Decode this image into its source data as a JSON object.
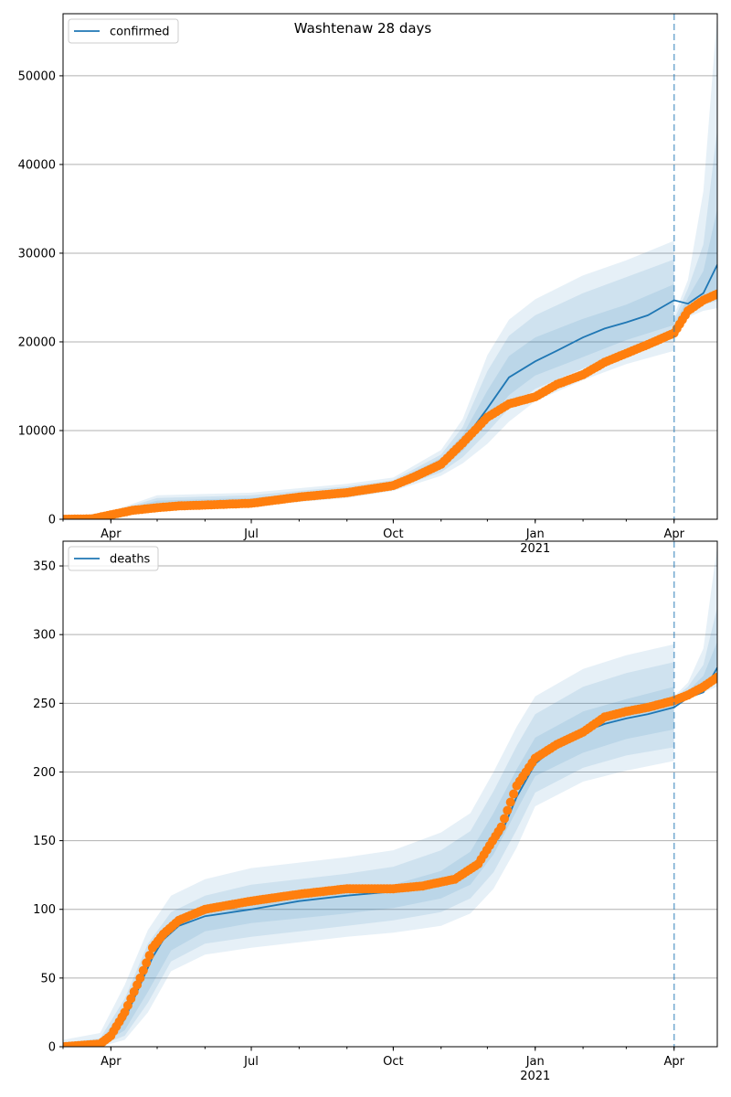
{
  "figure": {
    "title": "Washtenaw 28 days"
  },
  "colors": {
    "model": "#1f77b4",
    "observed": "#ff7f0e",
    "band": "#1f77b4",
    "grid": "#b0b0b0",
    "forecast_line": "#1f77b4"
  },
  "chart_data": [
    {
      "type": "line",
      "title": "Washtenaw 28 days",
      "xlabel": "",
      "ylabel": "",
      "legend": {
        "placement": "top-left",
        "entries": [
          "confirmed"
        ]
      },
      "grid": "y-major",
      "x_range": [
        "2020-03-01",
        "2021-04-29"
      ],
      "ylim": [
        0,
        57000
      ],
      "y_ticks": [
        0,
        10000,
        20000,
        30000,
        40000,
        50000
      ],
      "y_tick_labels": [
        "0",
        "10000",
        "20000",
        "30000",
        "40000",
        "50000"
      ],
      "x_ticks": [
        "2020-04-01",
        "2020-07-01",
        "2020-10-01",
        "2021-01-01",
        "2021-04-01"
      ],
      "x_tick_labels": [
        "Apr",
        "Jul",
        "Oct",
        "Jan",
        "Apr"
      ],
      "x_year_label": "2021",
      "forecast_start": "2021-04-01",
      "series": [
        {
          "name": "confirmed",
          "style": "line",
          "x": [
            "2020-03-01",
            "2020-03-20",
            "2020-04-01",
            "2020-04-15",
            "2020-05-01",
            "2020-05-15",
            "2020-06-01",
            "2020-07-01",
            "2020-08-01",
            "2020-09-01",
            "2020-10-01",
            "2020-10-15",
            "2020-11-01",
            "2020-11-15",
            "2020-12-01",
            "2020-12-15",
            "2021-01-01",
            "2021-01-15",
            "2021-02-01",
            "2021-02-15",
            "2021-03-01",
            "2021-03-15",
            "2021-04-01",
            "2021-04-10",
            "2021-04-20",
            "2021-04-29"
          ],
          "y": [
            0,
            50,
            500,
            1200,
            1600,
            1800,
            1900,
            2100,
            2700,
            3200,
            3900,
            4800,
            6300,
            8700,
            12500,
            16000,
            17800,
            19000,
            20500,
            21500,
            22200,
            23000,
            24700,
            24300,
            25500,
            28700
          ]
        },
        {
          "name": "",
          "style": "markers",
          "x": [
            "2020-03-01",
            "2020-03-20",
            "2020-04-01",
            "2020-04-15",
            "2020-05-01",
            "2020-05-15",
            "2020-06-01",
            "2020-07-01",
            "2020-08-01",
            "2020-09-01",
            "2020-10-01",
            "2020-10-15",
            "2020-11-01",
            "2020-11-15",
            "2020-12-01",
            "2020-12-15",
            "2021-01-01",
            "2021-01-15",
            "2021-02-01",
            "2021-02-15",
            "2021-03-01",
            "2021-03-15",
            "2021-04-01",
            "2021-04-10",
            "2021-04-20",
            "2021-04-29"
          ],
          "y": [
            0,
            50,
            500,
            1000,
            1300,
            1500,
            1600,
            1800,
            2500,
            3000,
            3800,
            4800,
            6200,
            8600,
            11500,
            13000,
            13800,
            15200,
            16300,
            17700,
            18700,
            19700,
            21000,
            23500,
            24700,
            25400
          ]
        }
      ],
      "bands": [
        {
          "x": [
            "2020-03-01",
            "2020-04-01",
            "2020-05-01",
            "2020-07-01",
            "2020-09-01",
            "2020-10-01",
            "2020-11-01",
            "2020-11-15",
            "2020-12-01",
            "2020-12-15",
            "2021-01-01",
            "2021-02-01",
            "2021-03-01",
            "2021-04-01"
          ],
          "lower": [
            0,
            300,
            1000,
            1500,
            2400,
            3200,
            4900,
            6300,
            8500,
            11000,
            13300,
            15700,
            17500,
            19000
          ],
          "upper": [
            100,
            900,
            2700,
            3000,
            4000,
            4700,
            7800,
            11300,
            18500,
            22500,
            24800,
            27500,
            29200,
            31400
          ]
        },
        {
          "x": [
            "2020-03-01",
            "2020-04-01",
            "2020-05-01",
            "2020-07-01",
            "2020-09-01",
            "2020-10-01",
            "2020-11-01",
            "2020-11-15",
            "2020-12-01",
            "2020-12-15",
            "2021-01-01",
            "2021-02-01",
            "2021-03-01",
            "2021-04-01"
          ],
          "lower": [
            0,
            350,
            1150,
            1650,
            2600,
            3400,
            5300,
            7000,
            9800,
            12500,
            14700,
            17000,
            18900,
            20500
          ],
          "upper": [
            80,
            800,
            2400,
            2700,
            3700,
            4400,
            7300,
            10400,
            16700,
            20700,
            23000,
            25500,
            27300,
            29300
          ]
        },
        {
          "x": [
            "2020-03-01",
            "2020-04-01",
            "2020-05-01",
            "2020-07-01",
            "2020-09-01",
            "2020-10-01",
            "2020-11-01",
            "2020-11-15",
            "2020-12-01",
            "2020-12-15",
            "2021-01-01",
            "2021-02-01",
            "2021-03-01",
            "2021-04-01"
          ],
          "lower": [
            0,
            400,
            1300,
            1800,
            2800,
            3600,
            5700,
            7700,
            11000,
            14000,
            16200,
            18300,
            20200,
            21900
          ],
          "upper": [
            60,
            700,
            2100,
            2400,
            3400,
            4200,
            6900,
            9500,
            14500,
            18400,
            20500,
            22600,
            24200,
            26500
          ]
        },
        {
          "x": [
            "2021-04-01",
            "2021-04-10",
            "2021-04-20",
            "2021-04-29"
          ],
          "lower": [
            21000,
            22800,
            23500,
            23800
          ],
          "upper": [
            23000,
            27000,
            37000,
            57000
          ]
        },
        {
          "x": [
            "2021-04-01",
            "2021-04-10",
            "2021-04-20",
            "2021-04-29"
          ],
          "lower": [
            21000,
            23300,
            24200,
            24600
          ],
          "upper": [
            22500,
            26000,
            31000,
            44000
          ]
        },
        {
          "x": [
            "2021-04-01",
            "2021-04-10",
            "2021-04-20",
            "2021-04-29"
          ],
          "lower": [
            21000,
            23600,
            24800,
            25500
          ],
          "upper": [
            22000,
            25000,
            28000,
            35000
          ]
        }
      ]
    },
    {
      "type": "line",
      "title": "",
      "xlabel": "",
      "ylabel": "",
      "legend": {
        "placement": "top-left",
        "entries": [
          "deaths"
        ]
      },
      "grid": "y-major",
      "x_range": [
        "2020-03-01",
        "2021-04-29"
      ],
      "ylim": [
        0,
        368
      ],
      "y_ticks": [
        0,
        50,
        100,
        150,
        200,
        250,
        300,
        350
      ],
      "y_tick_labels": [
        "0",
        "50",
        "100",
        "150",
        "200",
        "250",
        "300",
        "350"
      ],
      "x_ticks": [
        "2020-04-01",
        "2020-07-01",
        "2020-10-01",
        "2021-01-01",
        "2021-04-01"
      ],
      "x_tick_labels": [
        "Apr",
        "Jul",
        "Oct",
        "Jan",
        "Apr"
      ],
      "x_year_label": "2021",
      "forecast_start": "2021-04-01",
      "series": [
        {
          "name": "deaths",
          "style": "line",
          "x": [
            "2020-03-01",
            "2020-03-25",
            "2020-04-01",
            "2020-04-10",
            "2020-04-20",
            "2020-04-28",
            "2020-05-05",
            "2020-05-15",
            "2020-06-01",
            "2020-07-01",
            "2020-08-01",
            "2020-09-01",
            "2020-10-01",
            "2020-10-20",
            "2020-11-10",
            "2020-11-25",
            "2020-12-10",
            "2020-12-20",
            "2021-01-01",
            "2021-01-15",
            "2021-02-01",
            "2021-02-15",
            "2021-03-01",
            "2021-03-15",
            "2021-04-01",
            "2021-04-10",
            "2021-04-20",
            "2021-04-29"
          ],
          "y": [
            0,
            2,
            7,
            20,
            45,
            65,
            78,
            88,
            95,
            100,
            106,
            110,
            113,
            117,
            123,
            133,
            155,
            182,
            206,
            219,
            229,
            235,
            239,
            242,
            247,
            254,
            258,
            276
          ]
        },
        {
          "name": "",
          "style": "markers",
          "x": [
            "2020-03-01",
            "2020-03-25",
            "2020-04-01",
            "2020-04-10",
            "2020-04-20",
            "2020-04-28",
            "2020-05-05",
            "2020-05-15",
            "2020-06-01",
            "2020-07-01",
            "2020-08-01",
            "2020-09-01",
            "2020-10-01",
            "2020-10-20",
            "2020-11-10",
            "2020-11-25",
            "2020-12-10",
            "2020-12-20",
            "2021-01-01",
            "2021-01-15",
            "2021-02-01",
            "2021-02-15",
            "2021-03-01",
            "2021-03-15",
            "2021-04-01",
            "2021-04-10",
            "2021-04-20",
            "2021-04-29"
          ],
          "y": [
            0,
            2,
            8,
            25,
            50,
            72,
            82,
            92,
            100,
            106,
            111,
            115,
            115,
            117,
            122,
            133,
            160,
            190,
            210,
            220,
            229,
            240,
            244,
            247,
            252,
            256,
            262,
            269
          ]
        }
      ],
      "bands": [
        {
          "x": [
            "2020-03-01",
            "2020-03-25",
            "2020-04-10",
            "2020-04-25",
            "2020-05-10",
            "2020-06-01",
            "2020-07-01",
            "2020-09-01",
            "2020-10-01",
            "2020-11-01",
            "2020-11-20",
            "2020-12-05",
            "2020-12-20",
            "2021-01-01",
            "2021-02-01",
            "2021-03-01",
            "2021-04-01"
          ],
          "lower": [
            0,
            0,
            5,
            25,
            55,
            67,
            72,
            80,
            83,
            88,
            97,
            115,
            145,
            175,
            193,
            201,
            208
          ],
          "upper": [
            5,
            10,
            45,
            85,
            110,
            122,
            130,
            138,
            143,
            156,
            170,
            200,
            233,
            255,
            275,
            285,
            293
          ]
        },
        {
          "x": [
            "2020-03-01",
            "2020-03-25",
            "2020-04-10",
            "2020-04-25",
            "2020-05-10",
            "2020-06-01",
            "2020-07-01",
            "2020-09-01",
            "2020-10-01",
            "2020-11-01",
            "2020-11-20",
            "2020-12-05",
            "2020-12-20",
            "2021-01-01",
            "2021-02-01",
            "2021-03-01",
            "2021-04-01"
          ],
          "lower": [
            0,
            1,
            8,
            32,
            62,
            75,
            80,
            88,
            92,
            98,
            108,
            127,
            158,
            185,
            203,
            212,
            218
          ],
          "upper": [
            3,
            6,
            35,
            75,
            98,
            110,
            118,
            126,
            131,
            143,
            157,
            186,
            219,
            242,
            262,
            272,
            280
          ]
        },
        {
          "x": [
            "2020-03-01",
            "2020-03-25",
            "2020-04-10",
            "2020-04-25",
            "2020-05-10",
            "2020-06-01",
            "2020-07-01",
            "2020-09-01",
            "2020-10-01",
            "2020-11-01",
            "2020-11-20",
            "2020-12-05",
            "2020-12-20",
            "2021-01-01",
            "2021-02-01",
            "2021-03-01",
            "2021-04-01"
          ],
          "lower": [
            0,
            1,
            12,
            40,
            70,
            84,
            90,
            97,
            101,
            108,
            118,
            140,
            172,
            197,
            214,
            224,
            231
          ],
          "upper": [
            2,
            4,
            28,
            62,
            86,
            98,
            106,
            114,
            118,
            128,
            142,
            170,
            202,
            225,
            244,
            253,
            262
          ]
        },
        {
          "x": [
            "2021-04-01",
            "2021-04-10",
            "2021-04-20",
            "2021-04-29"
          ],
          "lower": [
            250,
            253,
            258,
            262
          ],
          "upper": [
            255,
            265,
            290,
            365
          ]
        },
        {
          "x": [
            "2021-04-01",
            "2021-04-10",
            "2021-04-20",
            "2021-04-29"
          ],
          "lower": [
            251,
            255,
            260,
            265
          ],
          "upper": [
            254,
            262,
            278,
            320
          ]
        },
        {
          "x": [
            "2021-04-01",
            "2021-04-10",
            "2021-04-20",
            "2021-04-29"
          ],
          "lower": [
            252,
            256,
            262,
            268
          ],
          "upper": [
            253,
            259,
            270,
            295
          ]
        }
      ]
    }
  ]
}
